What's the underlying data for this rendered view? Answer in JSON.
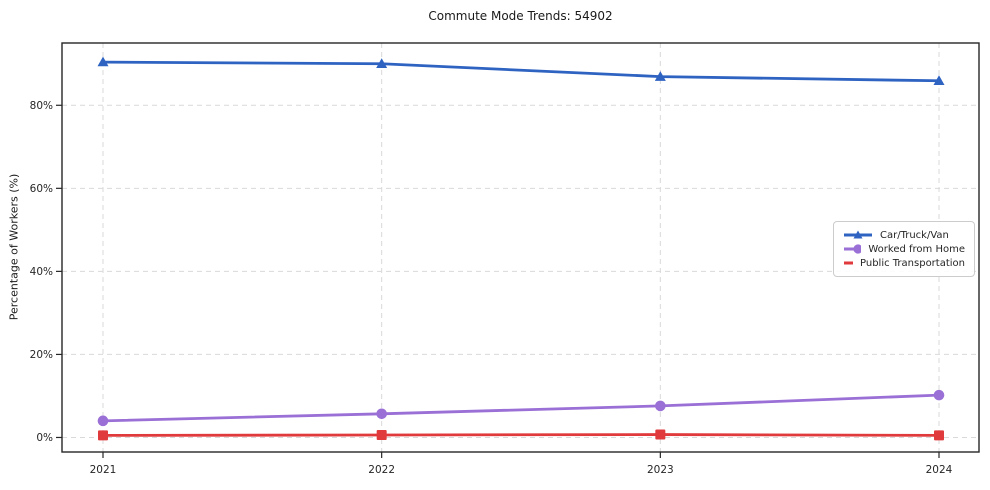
{
  "title": "Commute Mode Trends: 54902",
  "chart_data": {
    "type": "line",
    "title": "Commute Mode Trends: 54902",
    "xlabel": "",
    "ylabel": "Percentage of Workers (%)",
    "categories": [
      "2021",
      "2022",
      "2023",
      "2024"
    ],
    "series": [
      {
        "name": "Car/Truck/Van",
        "values": [
          90.4,
          90.0,
          86.9,
          85.9
        ],
        "color": "#2f63c2",
        "marker": "triangle"
      },
      {
        "name": "Worked from Home",
        "values": [
          4.0,
          5.7,
          7.6,
          10.2
        ],
        "color": "#9a6fd6",
        "marker": "circle"
      },
      {
        "name": "Public Transportation",
        "values": [
          0.5,
          0.6,
          0.7,
          0.5
        ],
        "color": "#e03a3c",
        "marker": "square"
      }
    ],
    "yticks": [
      0,
      20,
      40,
      60,
      80
    ],
    "ytick_labels": [
      "0%",
      "20%",
      "40%",
      "60%",
      "80%"
    ],
    "ylim": [
      -3.5,
      95
    ],
    "grid": true,
    "grid_style": "dashed",
    "grid_color": "#d9d9d9",
    "spine_color": "#262626",
    "tick_text_color": "#262626",
    "legend_position": "center-right"
  }
}
